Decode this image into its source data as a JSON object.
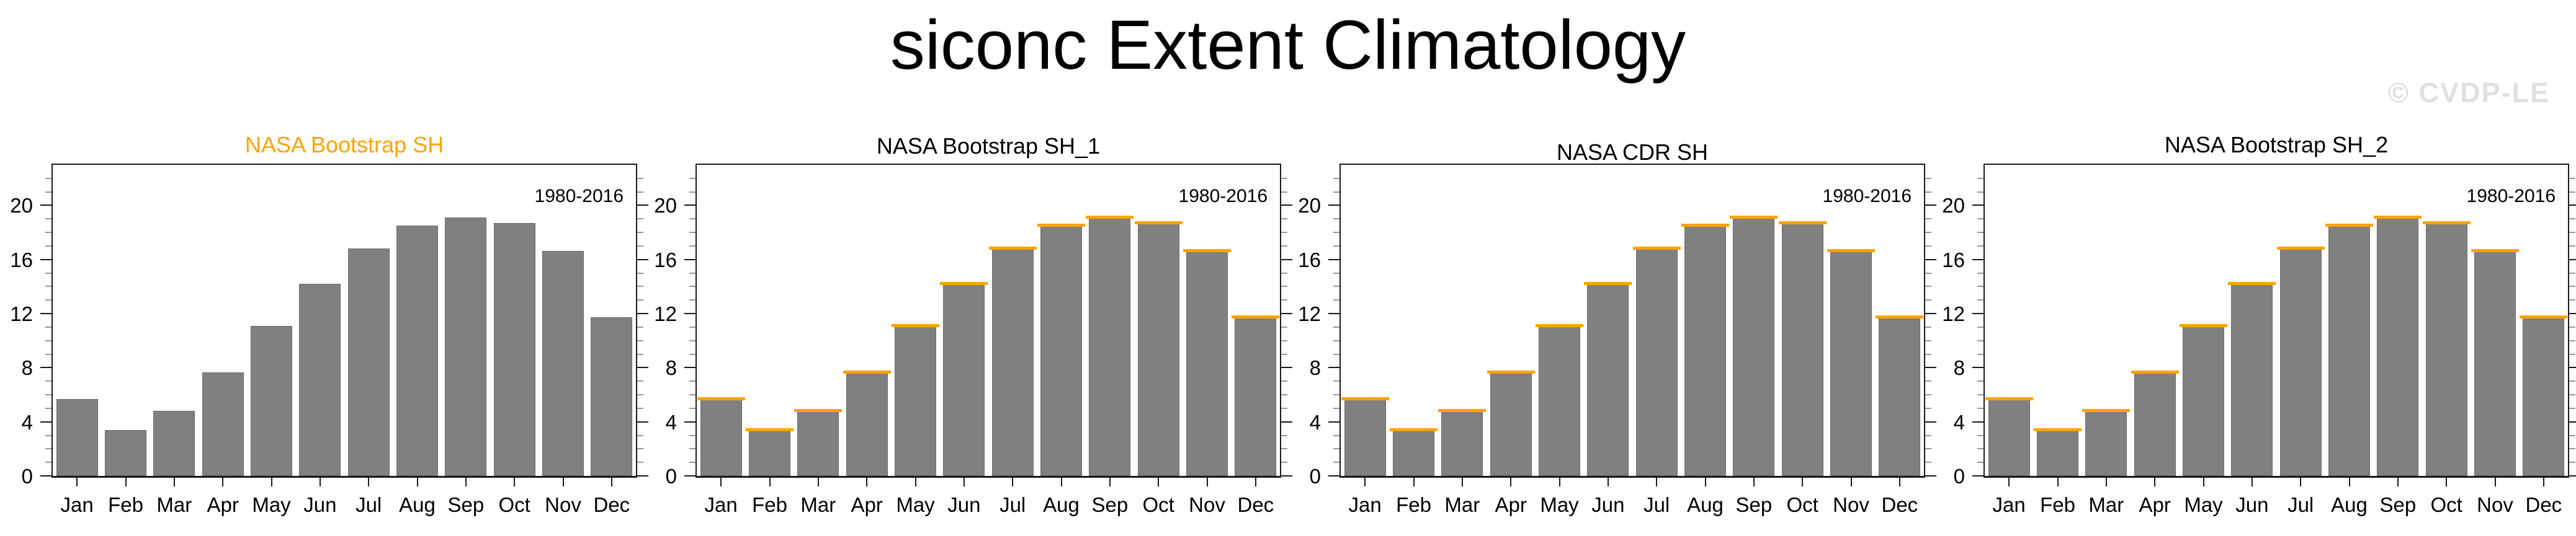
{
  "title": "siconc Extent Climatology",
  "watermark": "© CVDP-LE",
  "colors": {
    "background": "#FFFFFF",
    "bar_fill": "#808080",
    "bar_outline": "#6B6B6B",
    "reference_line": "#FFA300",
    "axis": "#1A1A1A",
    "minor_tick": "#999999",
    "watermark": "#E0E0E0"
  },
  "chart_data": [
    {
      "type": "bar",
      "title": "NASA Bootstrap SH",
      "title_color": "#FFA300",
      "annotation": "1980-2016",
      "categories": [
        "Jan",
        "Feb",
        "Mar",
        "Apr",
        "May",
        "Jun",
        "Jul",
        "Aug",
        "Sep",
        "Oct",
        "Nov",
        "Dec"
      ],
      "values": [
        5.7,
        3.4,
        4.8,
        7.65,
        11.1,
        14.2,
        16.8,
        18.5,
        19.1,
        18.7,
        16.65,
        11.75
      ],
      "reference_values": null,
      "ylim": [
        0,
        23
      ],
      "yticks": [
        0,
        4,
        8,
        12,
        16,
        20
      ],
      "minor_tick_step": 1,
      "grid": false,
      "legend": "none",
      "xlabel": "",
      "ylabel": ""
    },
    {
      "type": "bar",
      "title": "NASA Bootstrap SH_1",
      "title_color": "#000000",
      "annotation": "1980-2016",
      "categories": [
        "Jan",
        "Feb",
        "Mar",
        "Apr",
        "May",
        "Jun",
        "Jul",
        "Aug",
        "Sep",
        "Oct",
        "Nov",
        "Dec"
      ],
      "values": [
        5.7,
        3.4,
        4.8,
        7.65,
        11.1,
        14.2,
        16.8,
        18.5,
        19.1,
        18.7,
        16.65,
        11.75
      ],
      "reference_values": [
        5.7,
        3.4,
        4.8,
        7.65,
        11.1,
        14.2,
        16.8,
        18.5,
        19.1,
        18.7,
        16.65,
        11.75
      ],
      "ylim": [
        0,
        23
      ],
      "yticks": [
        0,
        4,
        8,
        12,
        16,
        20
      ],
      "minor_tick_step": 1,
      "grid": false,
      "legend": "none",
      "xlabel": "",
      "ylabel": ""
    },
    {
      "type": "bar",
      "title": "NASA CDR SH",
      "title_color": "#000000",
      "annotation": "1980-2016",
      "categories": [
        "Jan",
        "Feb",
        "Mar",
        "Apr",
        "May",
        "Jun",
        "Jul",
        "Aug",
        "Sep",
        "Oct",
        "Nov",
        "Dec"
      ],
      "values": [
        5.7,
        3.4,
        4.8,
        7.65,
        11.1,
        14.2,
        16.8,
        18.5,
        19.1,
        18.7,
        16.65,
        11.75
      ],
      "reference_values": [
        5.7,
        3.4,
        4.8,
        7.65,
        11.1,
        14.2,
        16.8,
        18.5,
        19.1,
        18.7,
        16.65,
        11.75
      ],
      "ylim": [
        0,
        23
      ],
      "yticks": [
        0,
        4,
        8,
        12,
        16,
        20
      ],
      "minor_tick_step": 1,
      "grid": false,
      "legend": "none",
      "xlabel": "",
      "ylabel": ""
    },
    {
      "type": "bar",
      "title": "NASA Bootstrap SH_2",
      "title_color": "#000000",
      "annotation": "1980-2016",
      "categories": [
        "Jan",
        "Feb",
        "Mar",
        "Apr",
        "May",
        "Jun",
        "Jul",
        "Aug",
        "Sep",
        "Oct",
        "Nov",
        "Dec"
      ],
      "values": [
        5.7,
        3.4,
        4.8,
        7.65,
        11.1,
        14.2,
        16.8,
        18.5,
        19.1,
        18.7,
        16.65,
        11.75
      ],
      "reference_values": [
        5.7,
        3.4,
        4.8,
        7.65,
        11.1,
        14.2,
        16.8,
        18.5,
        19.1,
        18.7,
        16.65,
        11.75
      ],
      "ylim": [
        0,
        23
      ],
      "yticks": [
        0,
        4,
        8,
        12,
        16,
        20
      ],
      "minor_tick_step": 1,
      "grid": false,
      "legend": "none",
      "xlabel": "",
      "ylabel": ""
    }
  ]
}
